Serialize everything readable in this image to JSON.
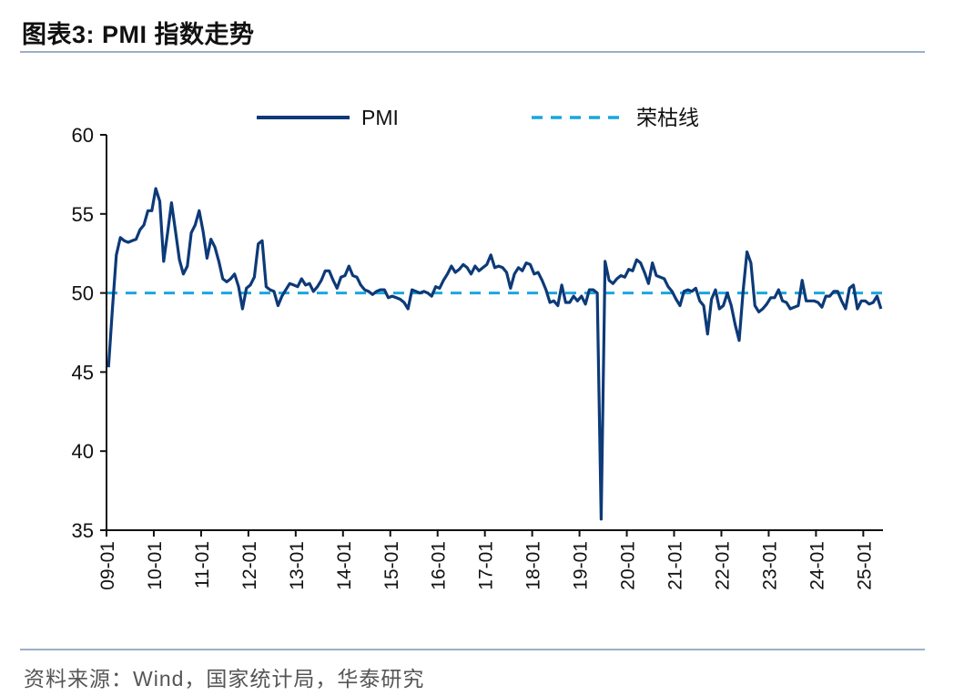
{
  "header": {
    "title": "图表3:  PMI 指数走势"
  },
  "footer": {
    "source": "资料来源：Wind，国家统计局，华泰研究"
  },
  "colors": {
    "pmi_line": "#0d3a78",
    "reference_line": "#1aa6de",
    "rule": "#9bb0c7"
  },
  "chart_data": {
    "type": "line",
    "title": "",
    "xlabel": "",
    "ylabel": "",
    "ylim": [
      35,
      60
    ],
    "yticks": [
      "35",
      "40",
      "45",
      "50",
      "55",
      "60"
    ],
    "xticks": [
      "09-01",
      "10-01",
      "11-01",
      "12-01",
      "13-01",
      "14-01",
      "15-01",
      "16-01",
      "17-01",
      "18-01",
      "19-01",
      "20-01",
      "21-01",
      "22-01",
      "23-01",
      "24-01",
      "25-01"
    ],
    "legend_position": "top",
    "grid": false,
    "start_period": "09-01",
    "series": [
      {
        "name": "PMI",
        "style": "solid",
        "values": [
          45.3,
          49.0,
          52.4,
          53.5,
          53.3,
          53.2,
          53.3,
          53.4,
          54.0,
          54.3,
          55.2,
          55.2,
          56.6,
          55.8,
          52.0,
          53.8,
          55.7,
          53.9,
          52.1,
          51.2,
          51.7,
          53.8,
          54.3,
          55.2,
          53.9,
          52.2,
          53.4,
          52.9,
          52.0,
          50.9,
          50.7,
          50.9,
          51.2,
          50.4,
          49.0,
          50.3,
          50.5,
          51.0,
          53.1,
          53.3,
          50.4,
          50.2,
          50.1,
          49.2,
          49.8,
          50.2,
          50.6,
          50.5,
          50.4,
          50.9,
          50.5,
          50.6,
          50.1,
          50.4,
          50.8,
          51.4,
          51.4,
          50.8,
          50.3,
          51.0,
          51.1,
          51.7,
          51.1,
          51.0,
          50.5,
          50.2,
          50.1,
          49.9,
          50.1,
          50.2,
          50.2,
          49.7,
          49.8,
          49.7,
          49.6,
          49.4,
          49.0,
          50.2,
          50.1,
          50.0,
          50.1,
          50.0,
          49.8,
          50.4,
          50.3,
          50.8,
          51.2,
          51.7,
          51.3,
          51.5,
          51.8,
          51.6,
          51.2,
          51.7,
          51.4,
          51.6,
          51.8,
          52.4,
          51.6,
          51.7,
          51.6,
          51.3,
          50.3,
          51.2,
          51.6,
          51.4,
          51.9,
          51.8,
          51.2,
          51.3,
          50.8,
          50.2,
          49.4,
          49.5,
          49.2,
          50.5,
          49.4,
          49.4,
          49.8,
          49.5,
          49.8,
          49.3,
          50.2,
          50.2,
          50.0,
          35.7,
          52.0,
          50.8,
          50.6,
          50.9,
          51.1,
          51.0,
          51.5,
          51.4,
          52.1,
          51.9,
          51.3,
          50.6,
          51.9,
          51.1,
          51.0,
          50.9,
          50.4,
          50.1,
          49.6,
          49.2,
          50.1,
          50.2,
          50.1,
          50.3,
          49.5,
          49.2,
          47.4,
          49.6,
          50.2,
          49.0,
          49.2,
          50.0,
          49.2,
          48.0,
          47.0,
          50.1,
          52.6,
          51.9,
          49.2,
          48.8,
          49.0,
          49.3,
          49.7,
          49.7,
          50.2,
          49.5,
          49.4,
          49.0,
          49.1,
          49.2,
          50.8,
          49.5,
          49.5,
          49.5,
          49.4,
          49.1,
          49.8,
          49.8,
          50.1,
          50.1,
          49.5,
          49.0,
          50.3,
          50.5,
          49.0,
          49.5,
          49.5,
          49.3,
          49.4,
          49.8,
          49.0
        ]
      },
      {
        "name": "荣枯线",
        "style": "dashed",
        "values": [
          50
        ]
      }
    ]
  }
}
